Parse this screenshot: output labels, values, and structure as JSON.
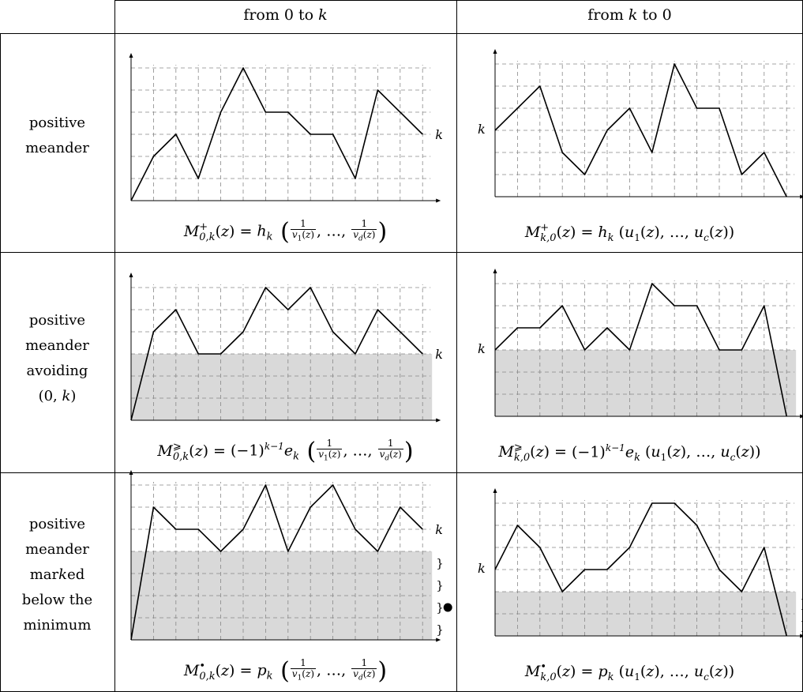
{
  "headers": {
    "col1": "from 0 to k",
    "col2": "from k to 0"
  },
  "rows": [
    {
      "label_lines": [
        "positive",
        "meander"
      ]
    },
    {
      "label_lines": [
        "positive",
        "meander",
        "avoiding",
        "(0, k)"
      ]
    },
    {
      "label_lines": [
        "positive",
        "meander",
        "marked",
        "below the",
        "minimum"
      ]
    }
  ],
  "k_label": "k",
  "marker_symbol": "}",
  "bullet_symbol": "●",
  "formulas": {
    "r1_left": {
      "lhs": "M",
      "sup": "+",
      "sub": "0,k",
      "rhs_fn": "h",
      "rhs_sub": "k"
    },
    "r1_right": {
      "lhs": "M",
      "sup": "+",
      "sub": "k,0",
      "rhs_fn": "h",
      "rhs_sub": "k"
    },
    "r2_left": {
      "lhs": "M",
      "sup": "⩾",
      "sub": "0,k",
      "sign": "(−1)",
      "sign_exp": "k−1",
      "rhs_fn": "e",
      "rhs_sub": "k"
    },
    "r2_right": {
      "lhs": "M",
      "sup": "⩾",
      "sub": "k,0",
      "sign": "(−1)",
      "sign_exp": "k−1",
      "rhs_fn": "e",
      "rhs_sub": "k"
    },
    "r3_left": {
      "lhs": "M",
      "sup": "•",
      "sub": "0,k",
      "rhs_fn": "p",
      "rhs_sub": "k"
    },
    "r3_right": {
      "lhs": "M",
      "sup": "•",
      "sub": "k,0",
      "rhs_fn": "p",
      "rhs_sub": "k"
    }
  },
  "grid_color": "#888888",
  "shade_color": "#d9d9d9",
  "paths": {
    "r1_left": [
      [
        0,
        0
      ],
      [
        1,
        2
      ],
      [
        2,
        3
      ],
      [
        3,
        1
      ],
      [
        4,
        4
      ],
      [
        5,
        6
      ],
      [
        6,
        4
      ],
      [
        7,
        4
      ],
      [
        8,
        3
      ],
      [
        9,
        3
      ],
      [
        10,
        1
      ],
      [
        11,
        5
      ],
      [
        12,
        4
      ],
      [
        13,
        3
      ]
    ],
    "r1_right": [
      [
        0,
        3
      ],
      [
        1,
        4
      ],
      [
        2,
        5
      ],
      [
        3,
        2
      ],
      [
        4,
        1
      ],
      [
        5,
        3
      ],
      [
        6,
        4
      ],
      [
        7,
        2
      ],
      [
        8,
        6
      ],
      [
        9,
        4
      ],
      [
        10,
        4
      ],
      [
        11,
        1
      ],
      [
        12,
        2
      ],
      [
        13,
        0
      ]
    ],
    "r2_left": [
      [
        0,
        0
      ],
      [
        1,
        4
      ],
      [
        2,
        5
      ],
      [
        3,
        3
      ],
      [
        4,
        3
      ],
      [
        5,
        4
      ],
      [
        6,
        6
      ],
      [
        7,
        5
      ],
      [
        8,
        6
      ],
      [
        9,
        4
      ],
      [
        10,
        3
      ],
      [
        11,
        5
      ],
      [
        12,
        4
      ],
      [
        13,
        3
      ]
    ],
    "r2_right": [
      [
        0,
        3
      ],
      [
        1,
        4
      ],
      [
        2,
        4
      ],
      [
        3,
        5
      ],
      [
        4,
        3
      ],
      [
        5,
        4
      ],
      [
        6,
        3
      ],
      [
        7,
        6
      ],
      [
        8,
        5
      ],
      [
        9,
        5
      ],
      [
        10,
        3
      ],
      [
        11,
        3
      ],
      [
        12,
        5
      ],
      [
        13,
        0
      ]
    ],
    "r3_left": [
      [
        0,
        0
      ],
      [
        1,
        6
      ],
      [
        2,
        5
      ],
      [
        3,
        5
      ],
      [
        4,
        4
      ],
      [
        5,
        5
      ],
      [
        6,
        7
      ],
      [
        7,
        4
      ],
      [
        8,
        6
      ],
      [
        9,
        7
      ],
      [
        10,
        5
      ],
      [
        11,
        4
      ],
      [
        12,
        6
      ],
      [
        13,
        5
      ]
    ],
    "r3_right": [
      [
        0,
        3
      ],
      [
        1,
        5
      ],
      [
        2,
        4
      ],
      [
        3,
        2
      ],
      [
        4,
        3
      ],
      [
        5,
        3
      ],
      [
        6,
        4
      ],
      [
        7,
        6
      ],
      [
        8,
        6
      ],
      [
        9,
        5
      ],
      [
        10,
        3
      ],
      [
        11,
        2
      ],
      [
        12,
        4
      ],
      [
        13,
        0
      ]
    ]
  },
  "shading": {
    "r2_left": 3,
    "r2_right": 3,
    "r3_left": 4,
    "r3_right": 2
  }
}
